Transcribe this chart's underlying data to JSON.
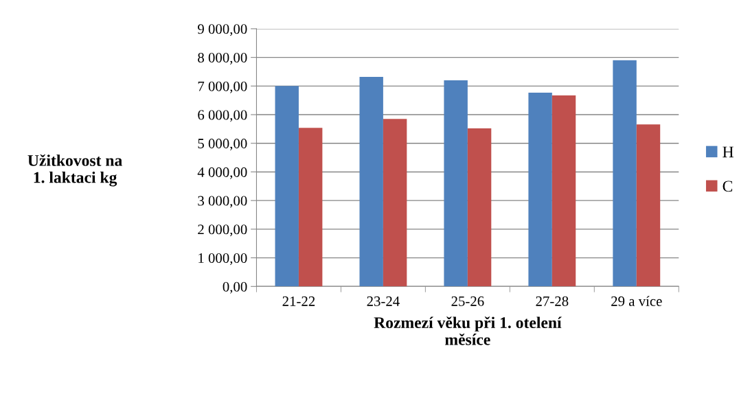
{
  "chart_data": {
    "type": "bar",
    "xlabel": "Rozmezí věku při 1. otelení\nměsíce",
    "ylabel": "Užitkovost na\n1. laktaci kg",
    "categories": [
      "21-22",
      "23-24",
      "25-26",
      "27-28",
      "29 a více"
    ],
    "series": [
      {
        "name": "H",
        "color": "#4f81bd",
        "values": [
          7000,
          7320,
          7200,
          6770,
          7900
        ]
      },
      {
        "name": "C",
        "color": "#c0504d",
        "values": [
          5540,
          5850,
          5520,
          6670,
          5660
        ]
      }
    ],
    "ylim": [
      0,
      9000
    ],
    "yticks": [
      {
        "value": 0,
        "label": "0,00"
      },
      {
        "value": 1000,
        "label": "1 000,00"
      },
      {
        "value": 2000,
        "label": "2 000,00"
      },
      {
        "value": 3000,
        "label": "3 000,00"
      },
      {
        "value": 4000,
        "label": "4 000,00"
      },
      {
        "value": 5000,
        "label": "5 000,00"
      },
      {
        "value": 6000,
        "label": "6 000,00"
      },
      {
        "value": 7000,
        "label": "7 000,00"
      },
      {
        "value": 8000,
        "label": "8 000,00"
      },
      {
        "value": 9000,
        "label": "9 000,00"
      }
    ],
    "grid": "y",
    "legend": "right"
  }
}
